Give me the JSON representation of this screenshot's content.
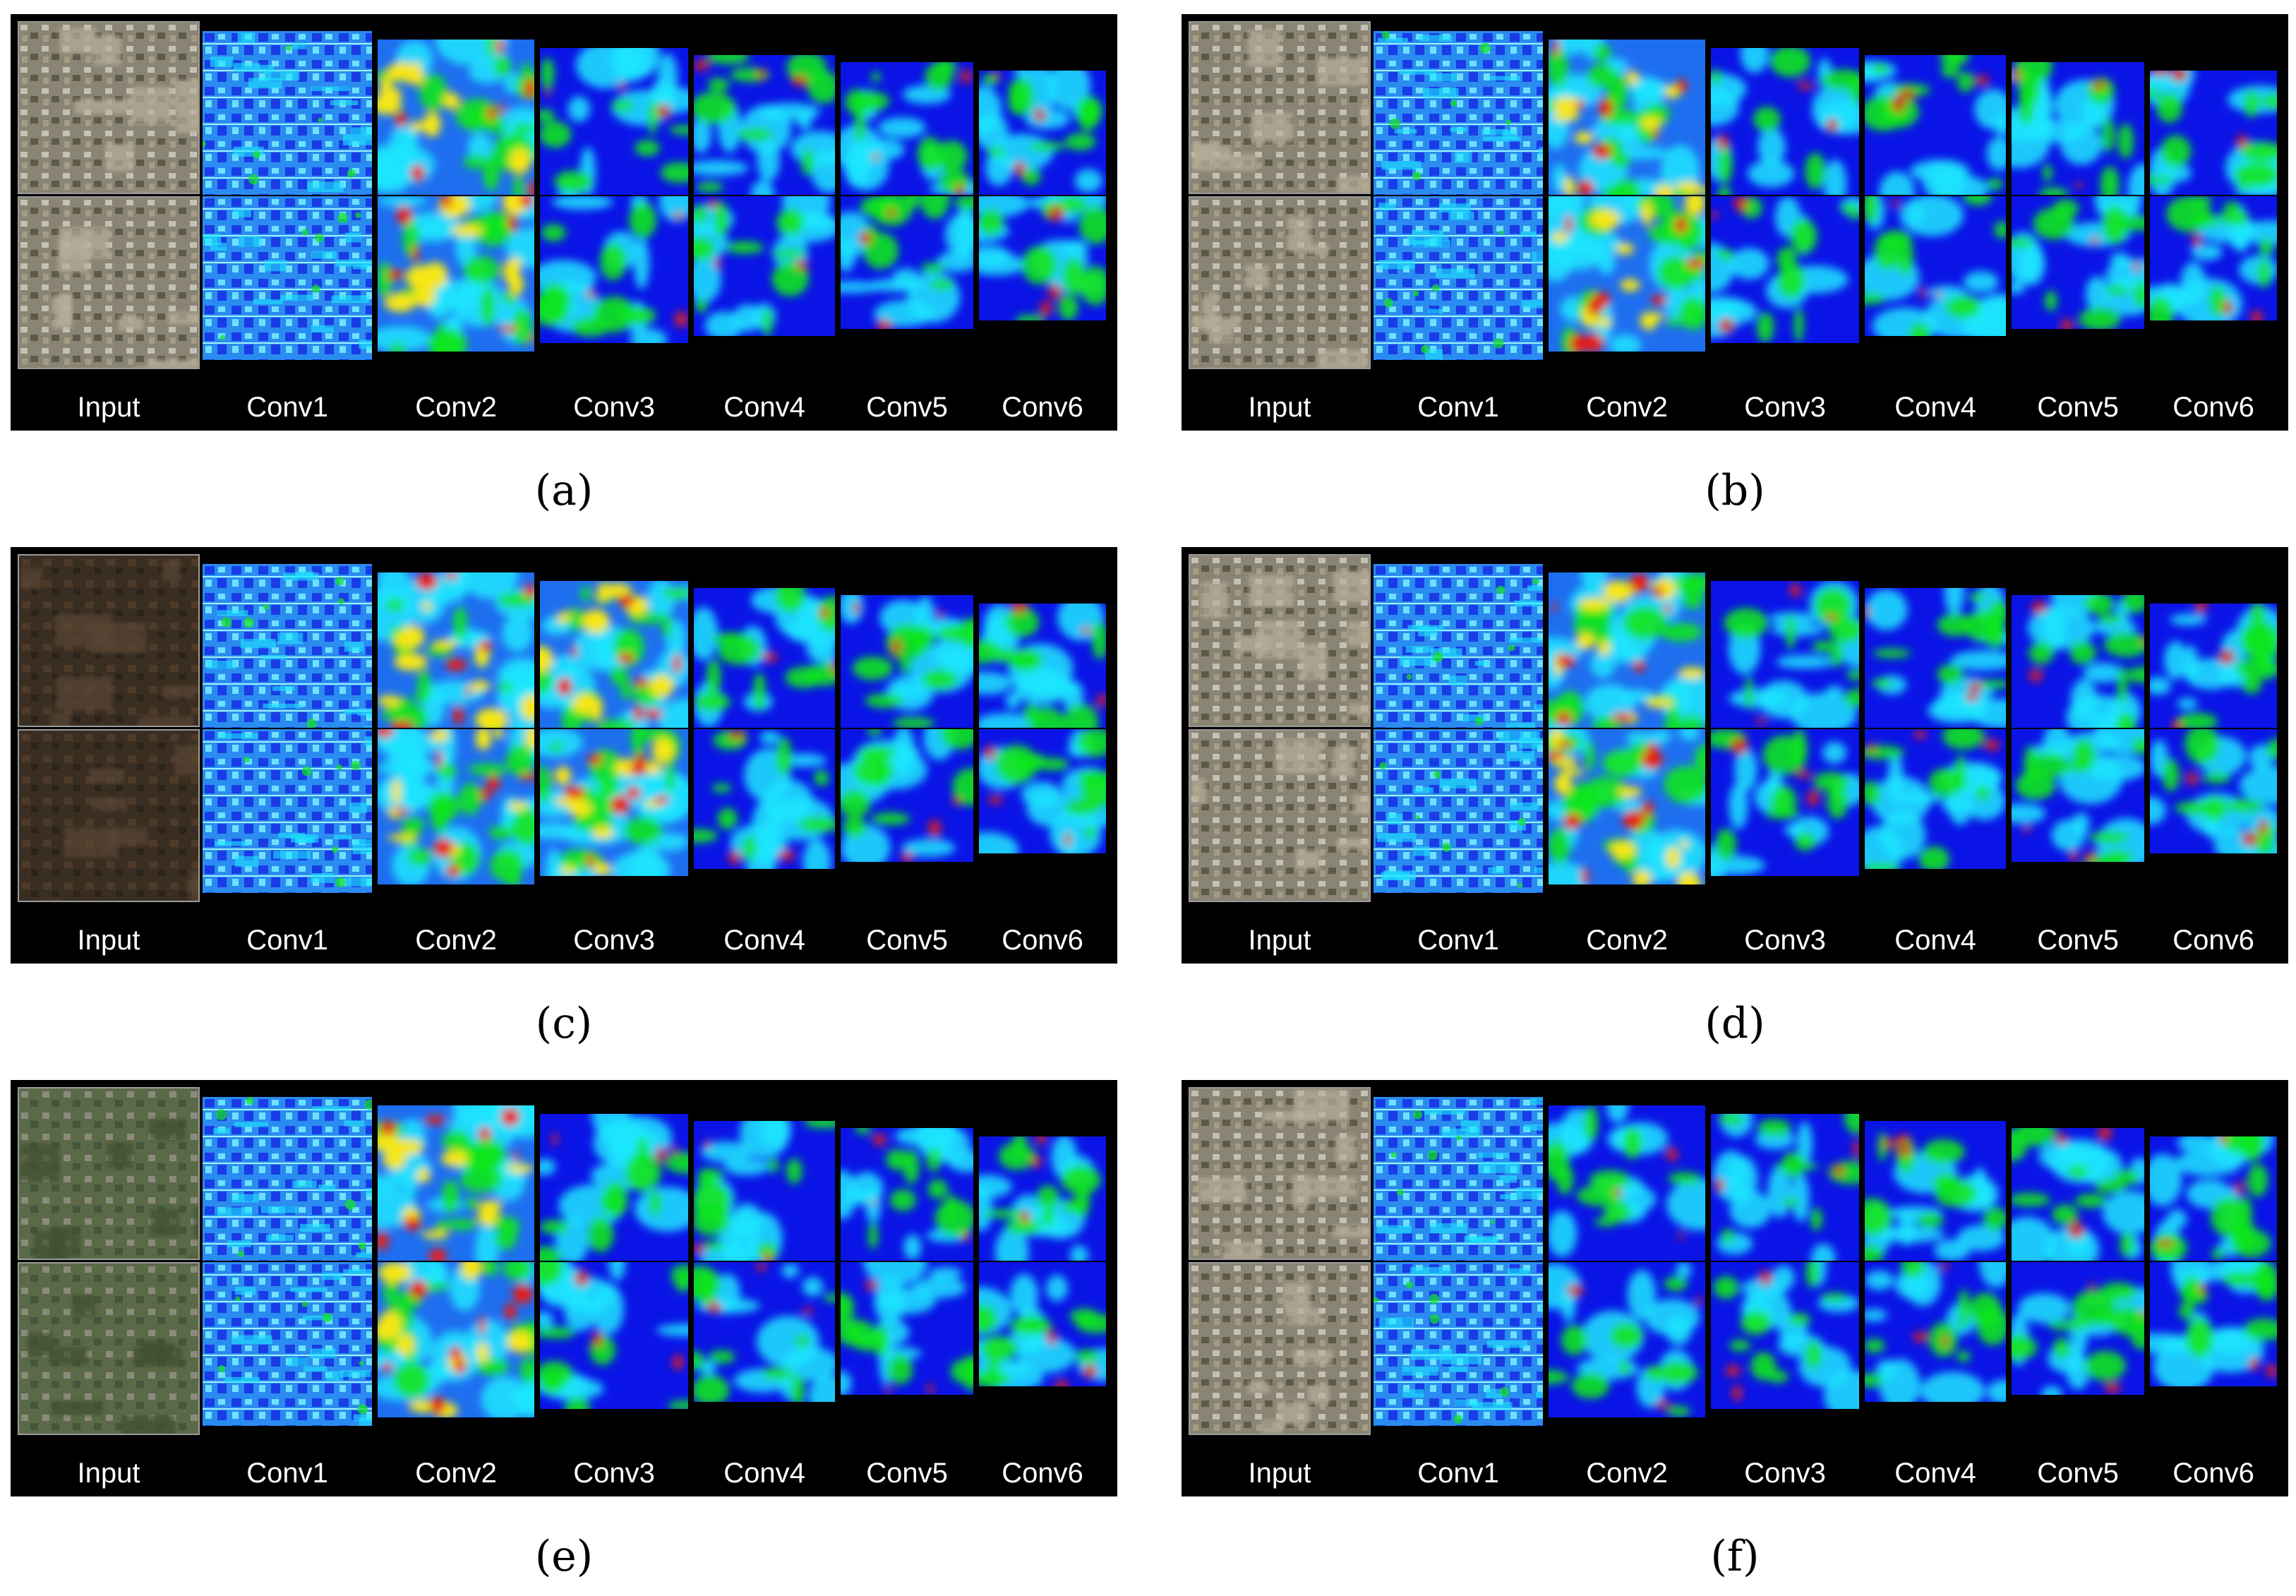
{
  "column_labels": [
    "Input",
    "Conv1",
    "Conv2",
    "Conv3",
    "Conv4",
    "Conv5",
    "Conv6"
  ],
  "panels": [
    {
      "id": "a",
      "caption": "(a)"
    },
    {
      "id": "b",
      "caption": "(b)"
    },
    {
      "id": "c",
      "caption": "(c)"
    },
    {
      "id": "d",
      "caption": "(d)"
    },
    {
      "id": "e",
      "caption": "(e)"
    },
    {
      "id": "f",
      "caption": "(f)"
    }
  ],
  "colors": {
    "background": "#000000",
    "heatmap_low": "#0a14e6",
    "heatmap_mid": "#1ee6ff",
    "heatmap_high_green": "#12e61e",
    "heatmap_hot_yellow": "#f5e614",
    "heatmap_hot_red": "#e61e14",
    "input_satellite": "#7a7a6a"
  }
}
